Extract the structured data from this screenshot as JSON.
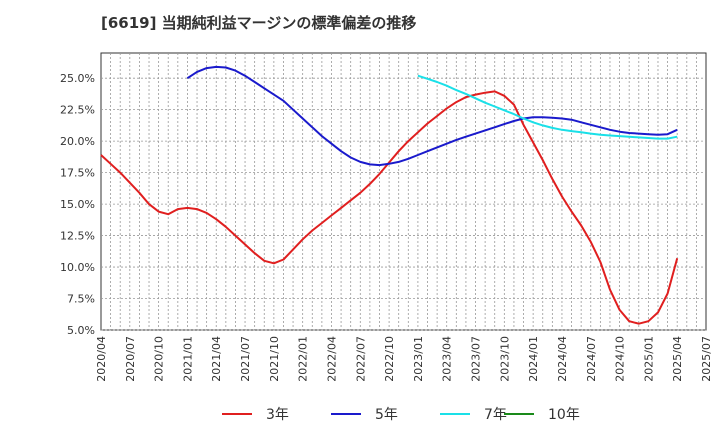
{
  "chart_data": {
    "type": "line",
    "title": "[6619]  当期純利益マージンの標準偏差の推移",
    "xlabel": "",
    "ylabel": "",
    "ylim": [
      5.0,
      27.0
    ],
    "y_ticks": [
      "5.0%",
      "7.5%",
      "10.0%",
      "12.5%",
      "15.0%",
      "17.5%",
      "20.0%",
      "22.5%",
      "25.0%"
    ],
    "y_tick_values": [
      5.0,
      7.5,
      10.0,
      12.5,
      15.0,
      17.5,
      20.0,
      22.5,
      25.0
    ],
    "x_ticks": [
      "2020/04",
      "2020/07",
      "2020/10",
      "2021/01",
      "2021/04",
      "2021/07",
      "2021/10",
      "2022/01",
      "2022/04",
      "2022/07",
      "2022/10",
      "2023/01",
      "2023/04",
      "2023/07",
      "2023/10",
      "2024/01",
      "2024/04",
      "2024/07",
      "2024/10",
      "2025/01",
      "2025/04",
      "2025/07"
    ],
    "grid": true,
    "legend_position": "bottom",
    "series": [
      {
        "name": "3年",
        "color": "#e01f1f",
        "x": [
          "2020/04",
          "2020/05",
          "2020/06",
          "2020/07",
          "2020/08",
          "2020/09",
          "2020/10",
          "2020/11",
          "2020/12",
          "2021/01",
          "2021/02",
          "2021/03",
          "2021/04",
          "2021/05",
          "2021/06",
          "2021/07",
          "2021/08",
          "2021/09",
          "2021/10",
          "2021/11",
          "2021/12",
          "2022/01",
          "2022/02",
          "2022/03",
          "2022/04",
          "2022/05",
          "2022/06",
          "2022/07",
          "2022/08",
          "2022/09",
          "2022/10",
          "2022/11",
          "2022/12",
          "2023/01",
          "2023/02",
          "2023/03",
          "2023/04",
          "2023/05",
          "2023/06",
          "2023/07",
          "2023/08",
          "2023/09",
          "2023/10",
          "2023/11",
          "2023/12",
          "2024/01",
          "2024/02",
          "2024/03",
          "2024/04",
          "2024/05",
          "2024/06",
          "2024/07",
          "2024/08",
          "2024/09",
          "2024/10",
          "2024/11",
          "2024/12",
          "2025/01",
          "2025/02",
          "2025/03",
          "2025/04"
        ],
        "values": [
          18.9,
          18.2,
          17.5,
          16.7,
          15.9,
          15.0,
          14.4,
          14.2,
          14.6,
          14.7,
          14.6,
          14.3,
          13.8,
          13.2,
          12.5,
          11.8,
          11.1,
          10.5,
          10.3,
          10.6,
          11.4,
          12.2,
          12.9,
          13.5,
          14.1,
          14.7,
          15.3,
          15.9,
          16.6,
          17.4,
          18.3,
          19.2,
          20.0,
          20.7,
          21.4,
          22.0,
          22.6,
          23.1,
          23.5,
          23.7,
          23.85,
          23.95,
          23.6,
          22.9,
          21.3,
          19.9,
          18.5,
          17.0,
          15.6,
          14.4,
          13.3,
          12.0,
          10.4,
          8.2,
          6.6,
          5.7,
          5.5,
          5.7,
          6.4,
          7.9,
          10.7
        ]
      },
      {
        "name": "5年",
        "color": "#1a1acc",
        "x": [
          "2021/01",
          "2021/02",
          "2021/03",
          "2021/04",
          "2021/05",
          "2021/06",
          "2021/07",
          "2021/08",
          "2021/09",
          "2021/10",
          "2021/11",
          "2021/12",
          "2022/01",
          "2022/02",
          "2022/03",
          "2022/04",
          "2022/05",
          "2022/06",
          "2022/07",
          "2022/08",
          "2022/09",
          "2022/10",
          "2022/11",
          "2022/12",
          "2023/01",
          "2023/02",
          "2023/03",
          "2023/04",
          "2023/05",
          "2023/06",
          "2023/07",
          "2023/08",
          "2023/09",
          "2023/10",
          "2023/11",
          "2023/12",
          "2024/01",
          "2024/02",
          "2024/03",
          "2024/04",
          "2024/05",
          "2024/06",
          "2024/07",
          "2024/08",
          "2024/09",
          "2024/10",
          "2024/11",
          "2024/12",
          "2025/01",
          "2025/02",
          "2025/03",
          "2025/04"
        ],
        "values": [
          25.0,
          25.5,
          25.8,
          25.9,
          25.85,
          25.6,
          25.2,
          24.7,
          24.2,
          23.7,
          23.2,
          22.5,
          21.8,
          21.1,
          20.4,
          19.8,
          19.2,
          18.7,
          18.35,
          18.15,
          18.1,
          18.2,
          18.35,
          18.6,
          18.9,
          19.2,
          19.5,
          19.8,
          20.1,
          20.35,
          20.6,
          20.85,
          21.1,
          21.35,
          21.6,
          21.8,
          21.9,
          21.9,
          21.85,
          21.8,
          21.7,
          21.5,
          21.3,
          21.1,
          20.9,
          20.75,
          20.65,
          20.6,
          20.55,
          20.5,
          20.55,
          20.9
        ]
      },
      {
        "name": "7年",
        "color": "#1ae0e8",
        "x": [
          "2023/01",
          "2023/02",
          "2023/03",
          "2023/04",
          "2023/05",
          "2023/06",
          "2023/07",
          "2023/08",
          "2023/09",
          "2023/10",
          "2023/11",
          "2023/12",
          "2024/01",
          "2024/02",
          "2024/03",
          "2024/04",
          "2024/05",
          "2024/06",
          "2024/07",
          "2024/08",
          "2024/09",
          "2024/10",
          "2024/11",
          "2024/12",
          "2025/01",
          "2025/02",
          "2025/03",
          "2025/04"
        ],
        "values": [
          25.2,
          24.95,
          24.7,
          24.4,
          24.05,
          23.75,
          23.4,
          23.05,
          22.75,
          22.45,
          22.15,
          21.8,
          21.5,
          21.25,
          21.05,
          20.9,
          20.8,
          20.7,
          20.6,
          20.5,
          20.45,
          20.4,
          20.35,
          20.3,
          20.25,
          20.2,
          20.2,
          20.35
        ]
      },
      {
        "name": "10年",
        "color": "#1a8a1a",
        "x": [],
        "values": []
      }
    ]
  }
}
